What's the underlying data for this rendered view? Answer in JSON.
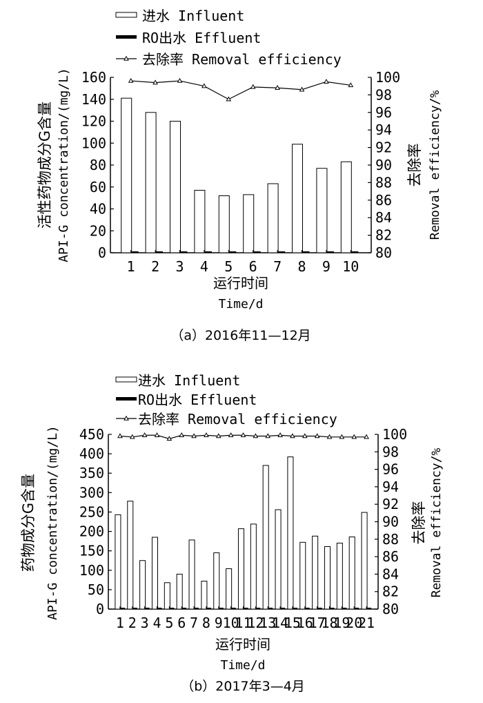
{
  "chart_data": [
    {
      "type": "bar",
      "title": "",
      "caption": "（a）2016年11—12月",
      "xlabel": [
        "运行时间",
        "Time/d"
      ],
      "ylabel_left": [
        "活性药物成分G含量",
        "API-G concentration/(mg/L)"
      ],
      "ylabel_right": [
        "去除率",
        "Removal efficiency/%"
      ],
      "ylim_left": [
        0,
        160
      ],
      "yticks_left": [
        0,
        20,
        40,
        60,
        80,
        100,
        120,
        140,
        160
      ],
      "ylim_right": [
        80,
        100
      ],
      "yticks_right": [
        80,
        82,
        84,
        86,
        88,
        90,
        92,
        94,
        96,
        98,
        100
      ],
      "categories": [
        "1",
        "2",
        "3",
        "4",
        "5",
        "6",
        "7",
        "8",
        "9",
        "10"
      ],
      "legend": [
        {
          "label": "进水 Influent",
          "style": "bar-open"
        },
        {
          "label": "RO出水 Effluent",
          "style": "bar-filled"
        },
        {
          "label": "去除率 Removal efficiency",
          "style": "line-marker"
        }
      ],
      "series": [
        {
          "name": "进水 Influent",
          "axis": "left",
          "kind": "bar",
          "values": [
            141,
            128,
            120,
            57,
            52,
            53,
            63,
            99,
            77,
            83
          ]
        },
        {
          "name": "RO出水 Effluent",
          "axis": "left",
          "kind": "bar",
          "values": [
            0.6,
            0.5,
            0.5,
            0.8,
            1.2,
            0.7,
            0.6,
            1.2,
            0.5,
            0.6
          ]
        },
        {
          "name": "去除率 Removal efficiency",
          "axis": "right",
          "kind": "line",
          "values": [
            99.6,
            99.4,
            99.6,
            99.0,
            97.5,
            98.9,
            98.8,
            98.6,
            99.5,
            99.1
          ]
        }
      ]
    },
    {
      "type": "bar",
      "title": "",
      "caption": "（b）2017年3—4月",
      "xlabel": [
        "运行时间",
        "Time/d"
      ],
      "ylabel_left": [
        "药物成分G含量",
        "API-G concentration/(mg/L)"
      ],
      "ylabel_right": [
        "去除率",
        "Removal efficiency/%"
      ],
      "ylim_left": [
        0,
        450
      ],
      "yticks_left": [
        0,
        50,
        100,
        150,
        200,
        250,
        300,
        350,
        400,
        450
      ],
      "ylim_right": [
        80,
        100
      ],
      "yticks_right": [
        80,
        82,
        84,
        86,
        88,
        90,
        92,
        94,
        96,
        98,
        100
      ],
      "categories": [
        "1",
        "2",
        "3",
        "4",
        "5",
        "6",
        "7",
        "8",
        "9",
        "10",
        "11",
        "12",
        "13",
        "14",
        "15",
        "16",
        "17",
        "18",
        "19",
        "20",
        "21"
      ],
      "legend": [
        {
          "label": "进水 Influent",
          "style": "bar-open"
        },
        {
          "label": "RO出水 Effluent",
          "style": "bar-filled"
        },
        {
          "label": "去除率 Removal efficiency",
          "style": "line-marker"
        }
      ],
      "series": [
        {
          "name": "进水 Influent",
          "axis": "left",
          "kind": "bar",
          "values": [
            243,
            278,
            125,
            185,
            68,
            90,
            178,
            72,
            145,
            104,
            207,
            219,
            370,
            256,
            392,
            172,
            188,
            161,
            170,
            186,
            249
          ]
        },
        {
          "name": "RO出水 Effluent",
          "axis": "left",
          "kind": "bar",
          "values": [
            0.5,
            0.5,
            0.5,
            0.5,
            0.5,
            0.5,
            0.5,
            0.5,
            0.5,
            0.5,
            0.5,
            0.5,
            0.5,
            0.5,
            0.5,
            0.5,
            0.5,
            0.5,
            0.5,
            0.5,
            0.5
          ]
        },
        {
          "name": "去除率 Removal efficiency",
          "axis": "right",
          "kind": "line",
          "values": [
            99.8,
            99.7,
            99.9,
            99.9,
            99.5,
            99.9,
            99.8,
            99.9,
            99.8,
            99.9,
            99.9,
            99.8,
            99.8,
            99.9,
            99.8,
            99.8,
            99.8,
            99.7,
            99.7,
            99.7,
            99.7
          ]
        }
      ]
    }
  ]
}
